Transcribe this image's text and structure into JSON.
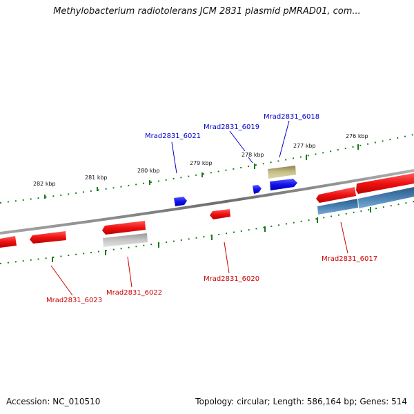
{
  "title": "Methylobacterium radiotolerans JCM 2831 plasmid pMRAD01, com...",
  "footer": {
    "accession": "Accession: NC_010510",
    "summary": "Topology: circular; Length: 586,164 bp; Genes: 514"
  },
  "ruler_labels": [
    "282 kbp",
    "281 kbp",
    "280 kbp",
    "279 kbp",
    "278 kbp",
    "277 kbp",
    "276 kbp"
  ],
  "gene_labels": {
    "forward": [
      "Mrad2831_6021",
      "Mrad2831_6019",
      "Mrad2831_6018"
    ],
    "reverse": [
      "Mrad2831_6023",
      "Mrad2831_6022",
      "Mrad2831_6020",
      "Mrad2831_6017"
    ]
  },
  "colors": {
    "backbone": "#8a8a8a",
    "ruler_tick": "#1a7a1a",
    "forward_label": "#0000cc",
    "reverse_label": "#cc0000",
    "gene_red": "#ee1111",
    "gene_blue": "#1111ee",
    "gene_grey": "#b4b4b4",
    "gene_khaki": "#c8c08a",
    "gene_steel": "#4a82b4"
  }
}
